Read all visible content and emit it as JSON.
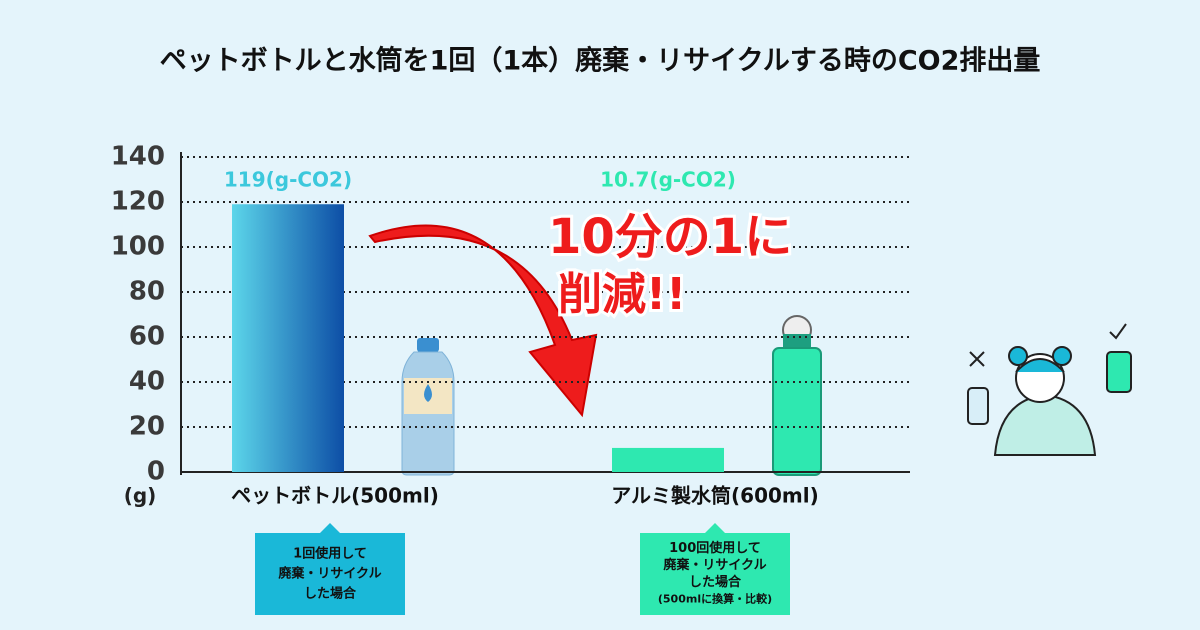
{
  "chart_data": {
    "type": "bar",
    "title": "ペットボトルと水筒を1回（1本）廃棄・リサイクルする時のCO2排出量",
    "y_label": "(g)",
    "categories": [
      "ペットボトル(500ml)",
      "アルミ製水筒(600ml)"
    ],
    "values": [
      119,
      10.7
    ],
    "value_labels": [
      "119(g-CO2)",
      "10.7(g-CO2)"
    ],
    "colors": [
      "#0d4ea6",
      "#2ee8b0"
    ],
    "label_colors": [
      "#3cc8dc",
      "#2ee8b0"
    ],
    "note_colors": [
      "#1ab8d8",
      "#2ee8b0"
    ],
    "ylim": [
      0,
      140
    ],
    "yticks": [
      0,
      20,
      40,
      60,
      80,
      100,
      120,
      140
    ],
    "grid": true,
    "notes": [
      [
        "1回使用して",
        "廃棄・リサイクル",
        "した場合"
      ],
      [
        "100回使用して",
        "廃棄・リサイクル",
        "した場合",
        "(500mlに換算・比較)"
      ]
    ],
    "annotation": [
      "10分の1に",
      "削減!!"
    ]
  }
}
